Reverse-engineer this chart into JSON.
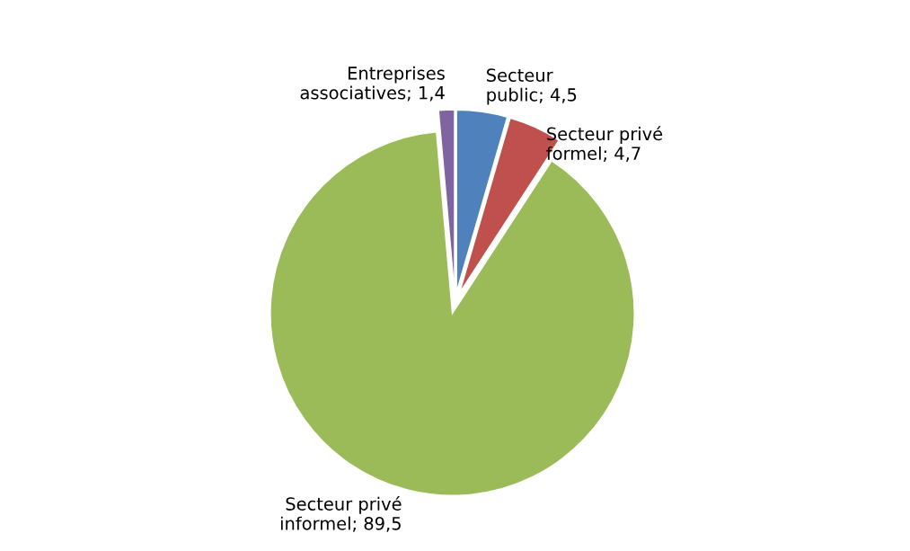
{
  "chart_data": {
    "type": "pie",
    "categories": [
      "Secteur public",
      "Secteur privé formel",
      "Secteur privé informel",
      "Entreprises associatives"
    ],
    "values": [
      4.5,
      4.7,
      89.5,
      1.4
    ],
    "value_labels": [
      "4,5",
      "4,7",
      "89,5",
      "1,4"
    ],
    "colors": [
      "#4f81bd",
      "#c0504d",
      "#9bbb59",
      "#8064a2"
    ],
    "legend": false
  }
}
